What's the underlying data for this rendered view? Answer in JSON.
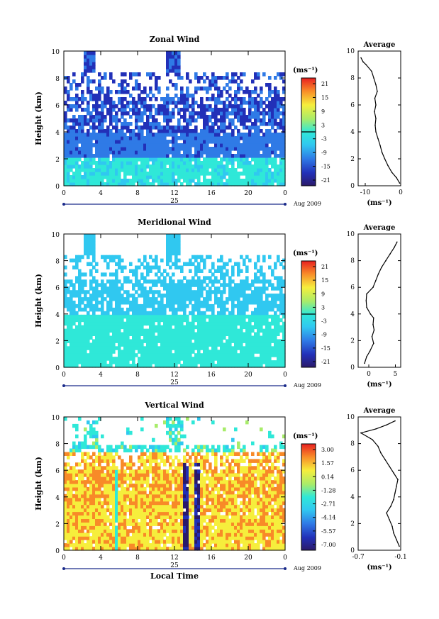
{
  "chart_data": [
    {
      "type": "heatmap",
      "title": "Zonal Wind",
      "ylabel": "Height (km)",
      "ylim": [
        0,
        10
      ],
      "xlim": [
        0,
        24
      ],
      "xticks": [
        "0",
        "4",
        "8",
        "12",
        "16",
        "20",
        "0"
      ],
      "date_day": "25",
      "date_month": "Aug 2009",
      "colorbar_unit": "(ms⁻¹)",
      "colorbar_ticks": [
        "21",
        "15",
        "9",
        "3",
        "-3",
        "-9",
        "-15",
        "-21"
      ],
      "colorbar_range": [
        -24,
        24
      ],
      "profile": {
        "title": "Average",
        "xlabel": "(ms⁻¹)",
        "xlim": [
          -12,
          0
        ],
        "xticks": [
          "-10",
          "0"
        ],
        "heights": [
          0.2,
          0.6,
          1,
          1.5,
          2,
          2.5,
          3,
          3.5,
          4,
          4.5,
          5,
          5.5,
          6,
          6.5,
          7,
          7.5,
          8,
          8.5,
          9,
          9.2,
          9.5
        ],
        "values": [
          -0.3,
          -1.2,
          -2.5,
          -3.6,
          -4.5,
          -5.3,
          -5.8,
          -6.4,
          -7.0,
          -7.2,
          -7.0,
          -7.4,
          -7.0,
          -7.3,
          -6.6,
          -7.0,
          -7.6,
          -8.2,
          -9.8,
          -10.6,
          -11.2
        ]
      }
    },
    {
      "type": "heatmap",
      "title": "Meridional Wind",
      "ylabel": "Height (km)",
      "ylim": [
        0,
        10
      ],
      "xlim": [
        0,
        24
      ],
      "xticks": [
        "0",
        "4",
        "8",
        "12",
        "16",
        "20",
        "0"
      ],
      "date_day": "25",
      "date_month": "Aug 2009",
      "colorbar_unit": "(ms⁻¹)",
      "colorbar_ticks": [
        "21",
        "15",
        "9",
        "3",
        "-3",
        "-9",
        "-15",
        "-21"
      ],
      "colorbar_range": [
        -24,
        24
      ],
      "profile": {
        "title": "Average",
        "xlabel": "(ms⁻¹)",
        "xlim": [
          -2,
          6
        ],
        "xticks": [
          "0",
          "5"
        ],
        "heights": [
          0.3,
          0.8,
          1.2,
          1.8,
          2.3,
          2.8,
          3.2,
          3.7,
          4.0,
          4.5,
          5.0,
          5.5,
          6.0,
          6.5,
          7.0,
          7.5,
          8.0,
          8.5,
          9.0,
          9.4
        ],
        "values": [
          -0.8,
          -0.4,
          0.2,
          0.9,
          0.6,
          1.0,
          0.8,
          0.9,
          0.3,
          -0.4,
          -0.5,
          -0.4,
          0.8,
          1.3,
          1.8,
          2.4,
          3.2,
          4.0,
          4.8,
          5.3
        ]
      }
    },
    {
      "type": "heatmap",
      "title": "Vertical Wind",
      "ylabel": "Height (km)",
      "xlabel": "Local Time",
      "ylim": [
        0,
        10
      ],
      "xlim": [
        0,
        24
      ],
      "xticks": [
        "0",
        "4",
        "8",
        "12",
        "16",
        "20",
        "0"
      ],
      "date_day": "25",
      "date_month": "Aug 2009",
      "colorbar_unit": "(ms⁻¹)",
      "colorbar_ticks": [
        "3.00",
        "1.57",
        "0.14",
        "-1.28",
        "-2.71",
        "-4.14",
        "-5.57",
        "-7.00"
      ],
      "colorbar_range": [
        -8,
        4
      ],
      "profile": {
        "title": "Average",
        "xlabel": "(ms⁻¹)",
        "xlim": [
          -0.7,
          -0.1
        ],
        "xticks": [
          "-0.7",
          "-0.1"
        ],
        "heights": [
          0.3,
          0.8,
          1.3,
          1.8,
          2.3,
          2.8,
          3.3,
          3.8,
          4.3,
          4.8,
          5.3,
          5.8,
          6.3,
          6.8,
          7.3,
          7.8,
          8.3,
          8.8,
          9.1,
          9.4,
          9.7
        ],
        "values": [
          -0.12,
          -0.16,
          -0.2,
          -0.22,
          -0.26,
          -0.3,
          -0.24,
          -0.2,
          -0.18,
          -0.16,
          -0.14,
          -0.2,
          -0.26,
          -0.32,
          -0.38,
          -0.42,
          -0.5,
          -0.66,
          -0.45,
          -0.3,
          -0.18
        ]
      }
    }
  ]
}
